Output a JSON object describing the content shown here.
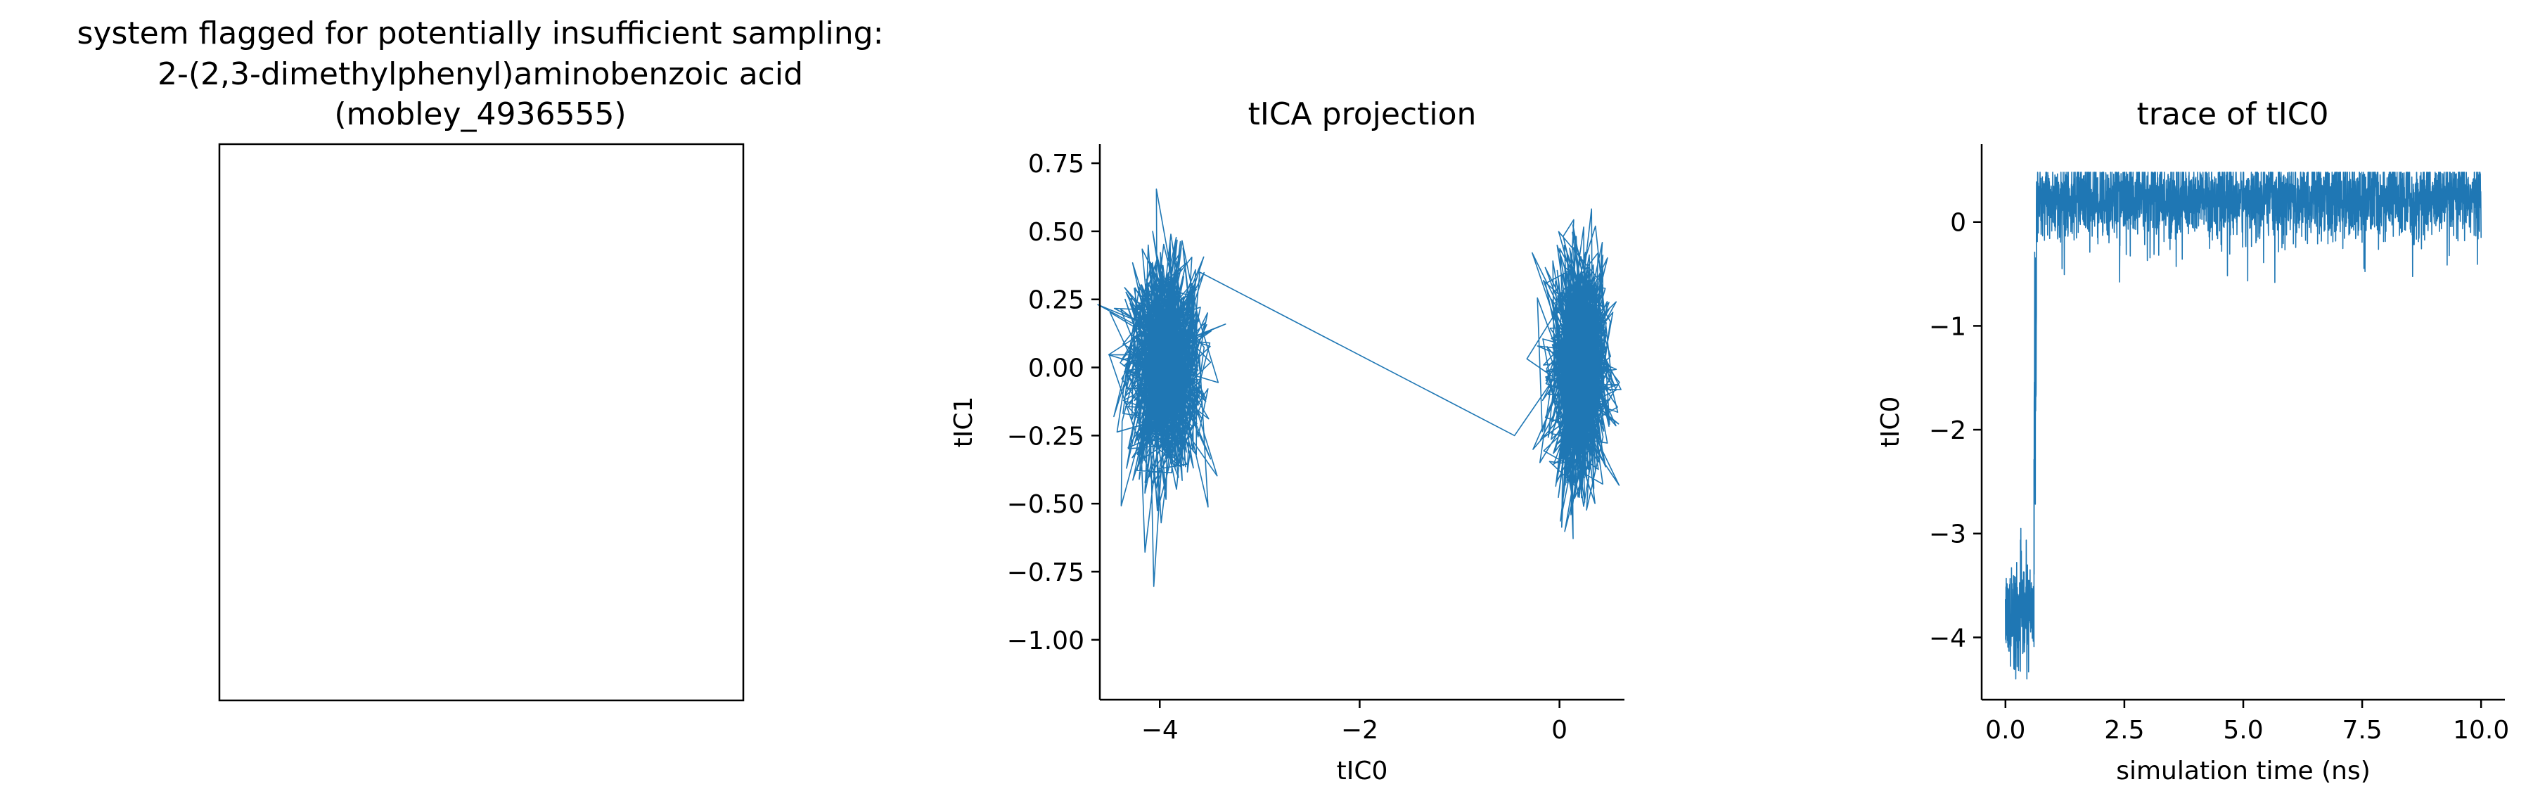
{
  "colors": {
    "series": "#1f77b4",
    "axis": "#000000"
  },
  "chart_data": [
    {
      "type": "image",
      "title_lines": [
        "system flagged for potentially insufficient sampling:",
        "2-(2,3-dimethylphenyl)aminobenzoic acid",
        "(mobley_4936555)"
      ],
      "content": "empty"
    },
    {
      "type": "line",
      "title": "tICA projection",
      "xlabel": "tIC0",
      "ylabel": "tIC1",
      "xlim": [
        -4.6,
        0.65
      ],
      "ylim": [
        -1.22,
        0.82
      ],
      "x_ticks": [
        -4,
        -2,
        0
      ],
      "x_tick_labels": [
        "−4",
        "−2",
        "0"
      ],
      "y_ticks": [
        0.75,
        0.5,
        0.25,
        0.0,
        -0.25,
        -0.5,
        -0.75,
        -1.0
      ],
      "y_tick_labels": [
        "0.75",
        "0.50",
        "0.25",
        "0.00",
        "−0.25",
        "−0.50",
        "−0.75",
        "−1.00"
      ],
      "series": [
        {
          "color": "#1f77b4",
          "clusters": [
            {
              "center_x": -3.95,
              "center_y": 0.0,
              "x_spread": 0.55,
              "y_min": -1.13,
              "y_max": 0.72
            },
            {
              "center_x": 0.2,
              "center_y": 0.0,
              "x_spread": 0.4,
              "y_min": -0.7,
              "y_max": 0.71
            }
          ],
          "transition": {
            "x": [
              -3.6,
              -0.45
            ],
            "y": [
              0.35,
              -0.25
            ]
          }
        }
      ],
      "grid": false
    },
    {
      "type": "line",
      "title": "trace of tIC0",
      "xlabel": "simulation time (ns)",
      "ylabel": "tIC0",
      "xlim": [
        -0.5,
        10.5
      ],
      "ylim": [
        -4.6,
        0.75
      ],
      "x_ticks": [
        0.0,
        2.5,
        5.0,
        7.5,
        10.0
      ],
      "x_tick_labels": [
        "0.0",
        "2.5",
        "5.0",
        "7.5",
        "10.0"
      ],
      "y_ticks": [
        0,
        -1,
        -2,
        -3,
        -4
      ],
      "y_tick_labels": [
        "0",
        "−1",
        "−2",
        "−3",
        "−4"
      ],
      "series": [
        {
          "color": "#1f77b4",
          "segments": [
            {
              "t_start": 0.0,
              "t_end": 0.6,
              "level": -3.8,
              "range": [
                -4.4,
                -2.95
              ]
            },
            {
              "t_start": 0.6,
              "t_end": 0.65,
              "level": -1.5,
              "range": [
                -4.1,
                0.2
              ]
            },
            {
              "t_start": 0.65,
              "t_end": 10.0,
              "level": 0.22,
              "range": [
                -0.6,
                0.48
              ]
            }
          ]
        }
      ],
      "grid": false
    }
  ]
}
